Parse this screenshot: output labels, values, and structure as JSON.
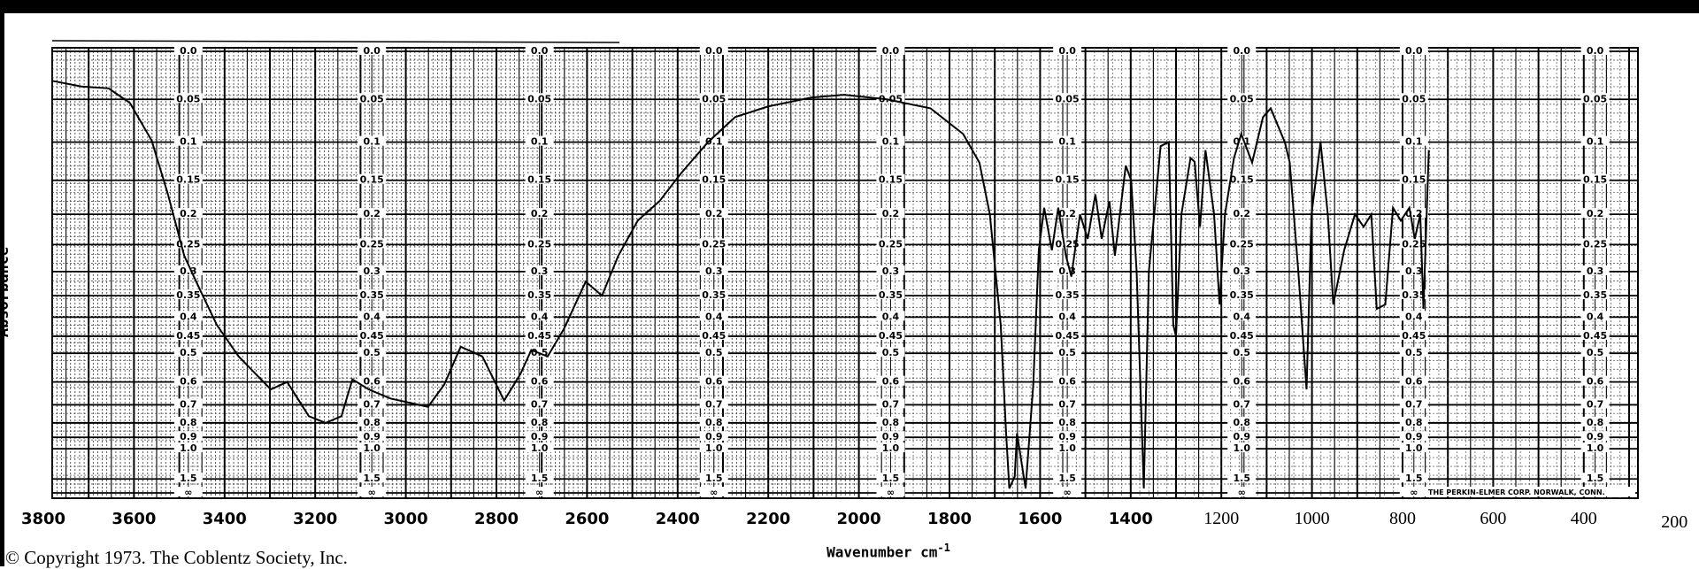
{
  "chart_data": {
    "type": "line",
    "title": "",
    "xlabel": "Wavenumber",
    "xlabel_unit": "cm",
    "xlabel_unit_exp": "-1",
    "ylabel": "Absorbance",
    "xlim": [
      3780,
      280
    ],
    "ylim": [
      0,
      "∞"
    ],
    "x_ticks": [
      "3800",
      "3600",
      "3400",
      "3200",
      "3000",
      "2800",
      "2600",
      "2400",
      "2200",
      "2000",
      "1800",
      "1600",
      "1400",
      "1200",
      "1000",
      "800",
      "600",
      "400",
      "200"
    ],
    "y_ticks": [
      "0.0",
      "0.05",
      "0.1",
      "0.15",
      "0.2",
      "0.25",
      "0.3",
      "0.35",
      "0.4",
      "0.45",
      "0.5",
      "0.6",
      "0.7",
      "0.8",
      "0.9",
      "1.0",
      "1.5",
      "∞"
    ],
    "y_tick_values": [
      0,
      0.05,
      0.1,
      0.15,
      0.2,
      0.25,
      0.3,
      0.35,
      0.4,
      0.45,
      0.5,
      0.6,
      0.7,
      0.8,
      0.9,
      1.0,
      1.5,
      99
    ],
    "y_label_columns_at_wavenumber": [
      3480,
      3075,
      2705,
      2320,
      1930,
      1540,
      1155,
      775,
      375
    ],
    "grid": true,
    "series": [
      {
        "name": "spectrum",
        "points": [
          [
            3781,
            0.03
          ],
          [
            3716,
            0.036
          ],
          [
            3656,
            0.038
          ],
          [
            3609,
            0.054
          ],
          [
            3561,
            0.098
          ],
          [
            3525,
            0.17
          ],
          [
            3489,
            0.27
          ],
          [
            3453,
            0.34
          ],
          [
            3417,
            0.42
          ],
          [
            3369,
            0.51
          ],
          [
            3298,
            0.63
          ],
          [
            3262,
            0.6
          ],
          [
            3214,
            0.76
          ],
          [
            3177,
            0.8
          ],
          [
            3142,
            0.76
          ],
          [
            3118,
            0.59
          ],
          [
            3082,
            0.63
          ],
          [
            3034,
            0.67
          ],
          [
            2951,
            0.71
          ],
          [
            2915,
            0.61
          ],
          [
            2879,
            0.48
          ],
          [
            2831,
            0.51
          ],
          [
            2783,
            0.68
          ],
          [
            2747,
            0.57
          ],
          [
            2723,
            0.49
          ],
          [
            2687,
            0.51
          ],
          [
            2651,
            0.43
          ],
          [
            2603,
            0.32
          ],
          [
            2567,
            0.35
          ],
          [
            2531,
            0.27
          ],
          [
            2488,
            0.21
          ],
          [
            2440,
            0.18
          ],
          [
            2392,
            0.14
          ],
          [
            2333,
            0.1
          ],
          [
            2273,
            0.07
          ],
          [
            2201,
            0.058
          ],
          [
            2105,
            0.048
          ],
          [
            2033,
            0.045
          ],
          [
            1938,
            0.05
          ],
          [
            1842,
            0.06
          ],
          [
            1770,
            0.09
          ],
          [
            1734,
            0.126
          ],
          [
            1711,
            0.2
          ],
          [
            1687,
            0.42
          ],
          [
            1675,
            0.87
          ],
          [
            1668,
            2.0
          ],
          [
            1656,
            1.43
          ],
          [
            1651,
            0.87
          ],
          [
            1632,
            2.0
          ],
          [
            1615,
            0.61
          ],
          [
            1603,
            0.26
          ],
          [
            1591,
            0.19
          ],
          [
            1574,
            0.26
          ],
          [
            1560,
            0.19
          ],
          [
            1543,
            0.27
          ],
          [
            1531,
            0.31
          ],
          [
            1512,
            0.2
          ],
          [
            1495,
            0.24
          ],
          [
            1478,
            0.17
          ],
          [
            1464,
            0.24
          ],
          [
            1447,
            0.18
          ],
          [
            1435,
            0.27
          ],
          [
            1411,
            0.13
          ],
          [
            1399,
            0.15
          ],
          [
            1387,
            0.3
          ],
          [
            1371,
            2.0
          ],
          [
            1360,
            0.3
          ],
          [
            1334,
            0.105
          ],
          [
            1316,
            0.1
          ],
          [
            1306,
            0.42
          ],
          [
            1300,
            0.45
          ],
          [
            1288,
            0.2
          ],
          [
            1268,
            0.12
          ],
          [
            1259,
            0.125
          ],
          [
            1247,
            0.22
          ],
          [
            1235,
            0.11
          ],
          [
            1216,
            0.2
          ],
          [
            1204,
            0.37
          ],
          [
            1192,
            0.2
          ],
          [
            1172,
            0.12
          ],
          [
            1156,
            0.09
          ],
          [
            1132,
            0.126
          ],
          [
            1108,
            0.07
          ],
          [
            1091,
            0.06
          ],
          [
            1060,
            0.1
          ],
          [
            1049,
            0.126
          ],
          [
            1030,
            0.3
          ],
          [
            1012,
            0.63
          ],
          [
            1001,
            0.2
          ],
          [
            981,
            0.1
          ],
          [
            965,
            0.2
          ],
          [
            953,
            0.37
          ],
          [
            929,
            0.26
          ],
          [
            905,
            0.2
          ],
          [
            886,
            0.22
          ],
          [
            869,
            0.2
          ],
          [
            857,
            0.38
          ],
          [
            838,
            0.37
          ],
          [
            821,
            0.19
          ],
          [
            804,
            0.21
          ],
          [
            785,
            0.19
          ],
          [
            773,
            0.24
          ],
          [
            761,
            0.2
          ],
          [
            754,
            0.38
          ],
          [
            742,
            0.11
          ]
        ]
      }
    ]
  },
  "footer": {
    "copyright": "© Copyright 1973. The Coblentz Society, Inc.",
    "manufacturer": "THE PERKIN-ELMER CORP. NORWALK, CONN."
  },
  "colors": {
    "ink": "#000000",
    "paper": "#ffffff"
  }
}
